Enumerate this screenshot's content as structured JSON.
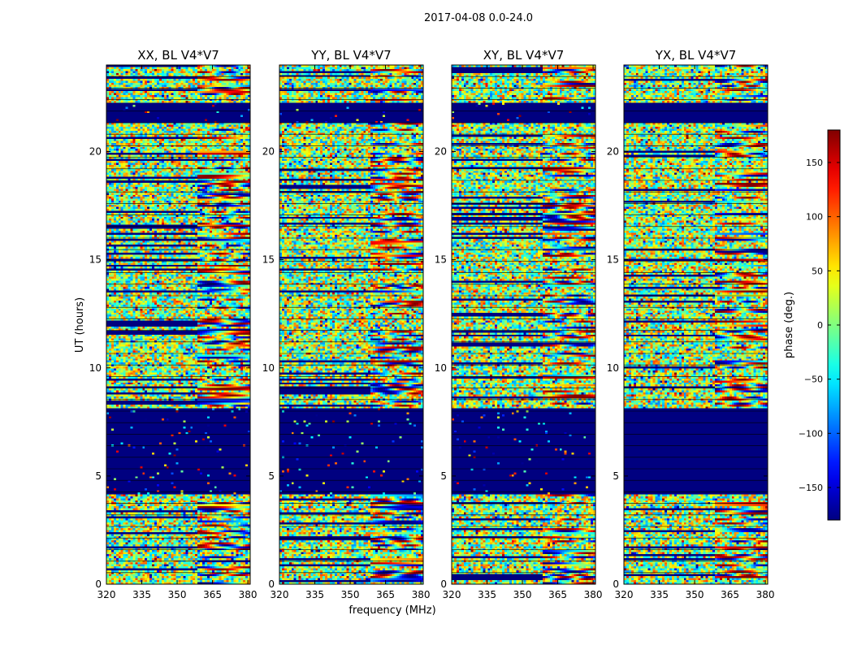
{
  "figure": {
    "suptitle": "2017-04-08 0.0-24.0",
    "xlabel": "frequency (MHz)",
    "ylabel": "UT (hours)",
    "colorbar_label": "phase (deg.)"
  },
  "chart_data": {
    "type": "heatmap",
    "title": "2017-04-08 0.0-24.0",
    "xlabel": "frequency (MHz)",
    "ylabel": "UT (hours)",
    "xlim": [
      320,
      381
    ],
    "ylim": [
      0,
      24
    ],
    "xticks": [
      320,
      335,
      350,
      365,
      380
    ],
    "yticks": [
      0,
      5,
      10,
      15,
      20
    ],
    "panels": [
      {
        "title": "XX, BL V4*V7"
      },
      {
        "title": "YY, BL V4*V7"
      },
      {
        "title": "XY, BL V4*V7"
      },
      {
        "title": "YX, BL V4*V7"
      }
    ],
    "colorbar": {
      "label": "phase (deg.)",
      "range": [
        -180,
        180
      ],
      "ticks": [
        -150,
        -100,
        -50,
        0,
        50,
        100,
        150
      ],
      "colormap": "jet"
    },
    "flagged_bands_hours": [
      [
        21.3,
        22.2
      ],
      [
        4.2,
        8.1
      ]
    ]
  },
  "colors": {
    "flagged": "#00007f",
    "band_line": "#000000"
  }
}
